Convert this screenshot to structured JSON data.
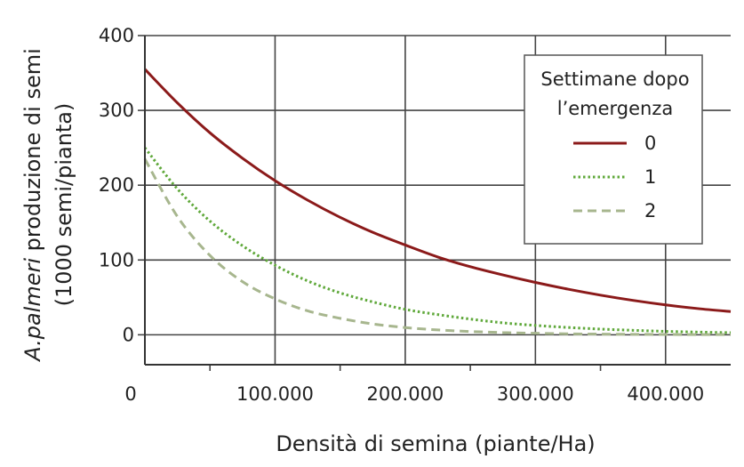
{
  "chart_data": {
    "type": "line",
    "xlabel": "Densità di semina (piante/Ha)",
    "ylabel_italic": "A.palmeri",
    "ylabel_rest": " produzione di semi",
    "ylabel_line2": "(1000 semi/pianta)",
    "xlim": [
      0,
      450000
    ],
    "ylim": [
      -40,
      400
    ],
    "x_ticks": [
      0,
      100000,
      200000,
      300000,
      400000
    ],
    "x_tick_labels": [
      "0",
      "100.000",
      "200.000",
      "300.000",
      "400.000"
    ],
    "y_ticks": [
      0,
      100,
      200,
      300,
      400
    ],
    "y_tick_labels": [
      "0",
      "100",
      "200",
      "300",
      "400"
    ],
    "grid": true,
    "legend": {
      "title_line1": "Settimane dopo",
      "title_line2": "l’emergenza",
      "placement": "top-right"
    },
    "x": [
      0,
      25000,
      50000,
      75000,
      100000,
      125000,
      150000,
      175000,
      200000,
      225000,
      250000,
      275000,
      300000,
      325000,
      350000,
      375000,
      400000,
      425000,
      450000
    ],
    "series": [
      {
        "name": "0",
        "color": "#8B1A1A",
        "dash": "solid",
        "values": [
          355,
          310,
          270,
          236,
          206,
          180,
          157,
          137,
          120,
          104,
          91,
          80,
          70,
          61,
          53,
          46,
          40,
          35,
          31
        ]
      },
      {
        "name": "1",
        "color": "#5FA83A",
        "dash": "dotted",
        "values": [
          250,
          195,
          152,
          119,
          93,
          72,
          56,
          44,
          34,
          27,
          21,
          16,
          12.5,
          9.8,
          7.6,
          6,
          4.6,
          3.6,
          2.8
        ]
      },
      {
        "name": "2",
        "color": "#A7B68E",
        "dash": "dashed",
        "values": [
          235,
          158,
          106,
          71,
          48,
          32,
          22,
          14.5,
          9.7,
          6.5,
          4.4,
          3,
          2,
          1.3,
          0.9,
          0.6,
          0.4,
          0.3,
          0.2
        ]
      }
    ]
  }
}
